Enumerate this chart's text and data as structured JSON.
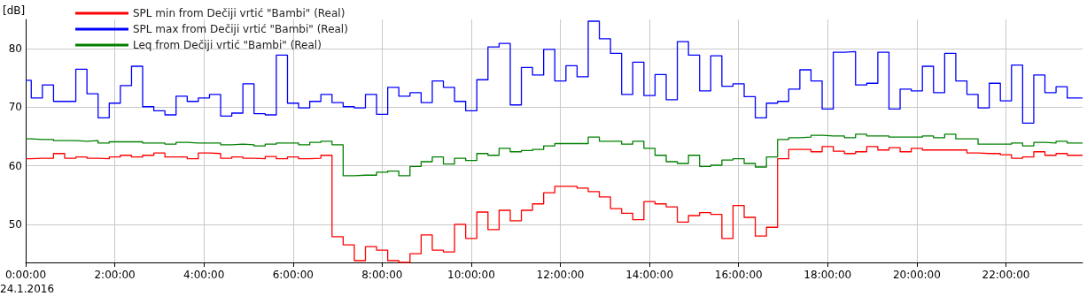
{
  "chart_data": {
    "type": "step",
    "ylabel": "[dB]",
    "annotations": [
      "24.1.2016"
    ],
    "x": [
      0,
      0.125,
      0.375,
      0.625,
      0.875,
      1.125,
      1.375,
      1.625,
      1.875,
      2.125,
      2.375,
      2.625,
      2.875,
      3.125,
      3.375,
      3.625,
      3.875,
      4.125,
      4.375,
      4.625,
      4.875,
      5.125,
      5.375,
      5.625,
      5.875,
      6.125,
      6.375,
      6.625,
      6.875,
      7.125,
      7.375,
      7.625,
      7.875,
      8.125,
      8.375,
      8.625,
      8.875,
      9.125,
      9.375,
      9.625,
      9.875,
      10.125,
      10.375,
      10.625,
      10.875,
      11.125,
      11.375,
      11.625,
      11.875,
      12.125,
      12.375,
      12.625,
      12.875,
      13.125,
      13.375,
      13.625,
      13.875,
      14.125,
      14.375,
      14.625,
      14.875,
      15.125,
      15.375,
      15.625,
      15.875,
      16.125,
      16.375,
      16.625,
      16.875,
      17.125,
      17.375,
      17.625,
      17.875,
      18.125,
      18.375,
      18.625,
      18.875,
      19.125,
      19.375,
      19.625,
      19.875,
      20.125,
      20.375,
      20.625,
      20.875,
      21.125,
      21.375,
      21.625,
      21.875,
      22.125,
      22.375,
      22.625,
      22.875,
      23.125,
      23.375,
      23.72
    ],
    "series": [
      {
        "name": "SPL min from Dečiji vrtić \"Bambi\" (Real)",
        "color": "#ff0000",
        "values": [
          61.2,
          61.3,
          61.3,
          62.1,
          61.3,
          61.5,
          61.3,
          61.2,
          61.5,
          61.8,
          61.5,
          61.8,
          62.2,
          61.5,
          61.5,
          61.2,
          62.2,
          62.1,
          61.3,
          61.5,
          61.3,
          61.2,
          61.6,
          61.2,
          61.5,
          61.2,
          61.3,
          61.8,
          47.9,
          46.5,
          43.8,
          46.2,
          45.6,
          43.8,
          43.5,
          45.0,
          48.2,
          45.6,
          45.3,
          50.0,
          47.6,
          52.1,
          49.1,
          52.4,
          50.6,
          52.4,
          53.5,
          55.4,
          56.5,
          56.5,
          56.2,
          55.6,
          54.7,
          52.7,
          51.9,
          50.8,
          53.9,
          53.5,
          53.0,
          50.4,
          51.5,
          52.0,
          51.7,
          47.6,
          53.2,
          51.2,
          48.0,
          49.5,
          61.2,
          62.8,
          62.8,
          62.4,
          63.3,
          62.5,
          62.1,
          62.4,
          63.3,
          62.7,
          63.1,
          62.4,
          63.0,
          62.7,
          62.7,
          62.7,
          62.7,
          62.2,
          62.1,
          62.1,
          61.9,
          61.3,
          61.5,
          62.4,
          61.8,
          62.1,
          61.8,
          61.8
        ]
      },
      {
        "name": "SPL max from Dečiji vrtić \"Bambi\" (Real)",
        "color": "#0000ff",
        "values": [
          74.6,
          71.6,
          73.8,
          71.0,
          71.0,
          76.5,
          72.3,
          68.2,
          70.7,
          73.7,
          77.0,
          70.1,
          69.4,
          68.7,
          71.9,
          71.0,
          71.6,
          72.2,
          68.5,
          69.0,
          74.0,
          68.9,
          68.7,
          78.9,
          70.7,
          69.9,
          71.0,
          72.2,
          70.8,
          70.1,
          69.9,
          72.2,
          68.8,
          73.4,
          71.9,
          72.5,
          70.8,
          74.5,
          73.4,
          71.0,
          69.4,
          74.7,
          80.3,
          80.9,
          70.4,
          76.8,
          75.5,
          79.9,
          74.5,
          77.1,
          75.2,
          84.7,
          81.7,
          79.2,
          72.2,
          77.7,
          72.0,
          75.6,
          71.3,
          81.2,
          78.9,
          72.8,
          78.8,
          73.6,
          74.0,
          71.8,
          68.2,
          70.7,
          71.0,
          73.1,
          76.4,
          74.5,
          69.7,
          79.4,
          79.5,
          73.8,
          74.1,
          79.4,
          69.7,
          73.1,
          72.8,
          77.0,
          72.5,
          79.2,
          74.5,
          72.2,
          69.9,
          74.1,
          71.1,
          77.2,
          67.3,
          75.5,
          72.5,
          73.5,
          71.6,
          71.6
        ]
      },
      {
        "name": "Leq from Dečiji vrtić \"Bambi\" (Real)",
        "color": "#008000",
        "values": [
          64.6,
          64.5,
          64.5,
          64.3,
          64.3,
          64.2,
          64.3,
          63.9,
          64.1,
          64.1,
          64.1,
          63.9,
          63.9,
          63.7,
          64.0,
          63.9,
          63.9,
          63.9,
          63.6,
          63.7,
          63.6,
          63.4,
          63.7,
          63.9,
          63.9,
          63.6,
          64.0,
          64.2,
          63.6,
          58.3,
          58.4,
          58.4,
          58.9,
          59.1,
          58.3,
          59.9,
          60.7,
          61.5,
          60.3,
          61.3,
          60.9,
          62.1,
          61.8,
          63.0,
          62.4,
          62.6,
          62.8,
          63.4,
          63.8,
          63.8,
          63.8,
          64.9,
          64.2,
          64.2,
          63.7,
          64.2,
          63.0,
          61.8,
          60.7,
          60.4,
          61.8,
          59.9,
          60.1,
          61.0,
          61.2,
          60.4,
          59.8,
          61.5,
          64.5,
          64.8,
          64.9,
          65.2,
          65.1,
          65.1,
          64.8,
          65.4,
          65.1,
          65.1,
          64.9,
          64.9,
          64.9,
          65.1,
          64.8,
          65.4,
          64.6,
          64.6,
          63.7,
          63.7,
          63.7,
          63.9,
          63.4,
          64.0,
          63.9,
          64.2,
          63.9,
          63.9
        ]
      }
    ],
    "xlim": [
      0,
      23.72
    ],
    "ylim": [
      43.5,
      85
    ],
    "xticks": [
      {
        "value": 0,
        "label": "0:00:00"
      },
      {
        "value": 2,
        "label": "2:00:00"
      },
      {
        "value": 4,
        "label": "4:00:00"
      },
      {
        "value": 6,
        "label": "6:00:00"
      },
      {
        "value": 8,
        "label": "8:00:00"
      },
      {
        "value": 10,
        "label": "10:00:00"
      },
      {
        "value": 12,
        "label": "12:00:00"
      },
      {
        "value": 14,
        "label": "14:00:00"
      },
      {
        "value": 16,
        "label": "16:00:00"
      },
      {
        "value": 18,
        "label": "18:00:00"
      },
      {
        "value": 20,
        "label": "20:00:00"
      },
      {
        "value": 22,
        "label": "22:00:00"
      }
    ],
    "yticks": [
      50,
      60,
      70,
      80
    ],
    "grid": true,
    "legend": "top left",
    "marker": "none",
    "line_style": "solid"
  }
}
